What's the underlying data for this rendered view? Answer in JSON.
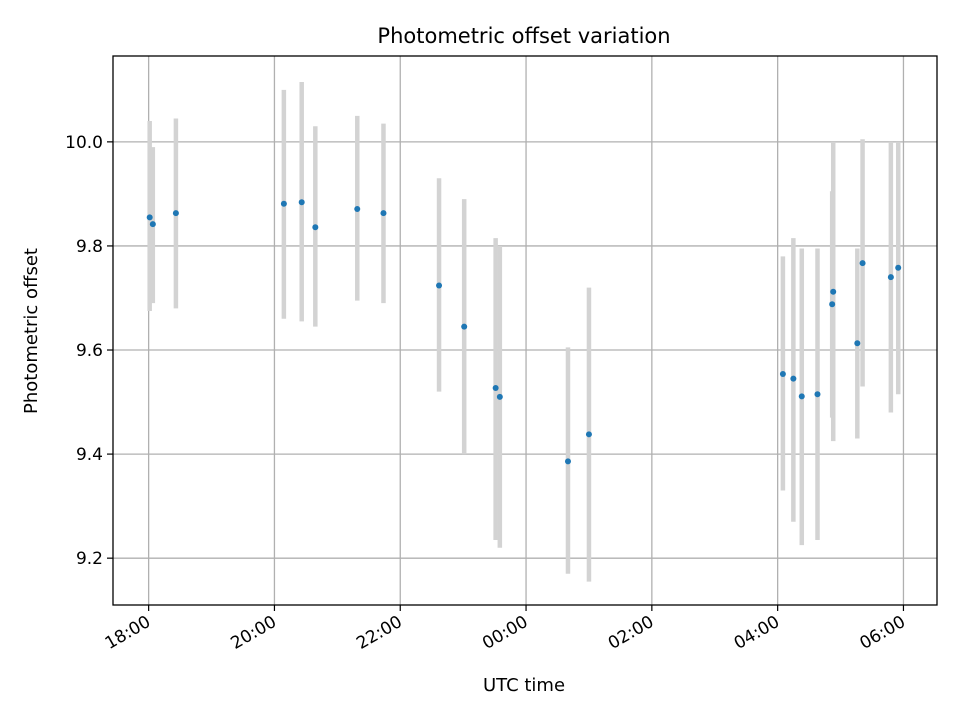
{
  "chart_data": {
    "type": "scatter",
    "title": "Photometric offset variation",
    "xlabel": "UTC time",
    "ylabel": "Photometric offset",
    "x_axis": {
      "kind": "time",
      "start": "2000-01-01T17:26",
      "end": "2000-01-02T06:32",
      "tick_times": [
        "2000-01-01T18:00",
        "2000-01-01T20:00",
        "2000-01-01T22:00",
        "2000-01-02T00:00",
        "2000-01-02T02:00",
        "2000-01-02T04:00",
        "2000-01-02T06:00"
      ],
      "tick_labels": [
        "18:00",
        "20:00",
        "22:00",
        "00:00",
        "02:00",
        "04:00",
        "06:00"
      ],
      "tick_label_rotation": "30deg"
    },
    "y_axis": {
      "min": 9.11,
      "max": 10.165,
      "ticks": [
        9.2,
        9.4,
        9.6,
        9.8,
        10.0
      ],
      "tick_labels": [
        "9.2",
        "9.4",
        "9.6",
        "9.8",
        "10.0"
      ]
    },
    "grid": true,
    "point_color": "#1f77b4",
    "errorbar_color": "#d3d3d3",
    "points": [
      {
        "x": "2000-01-01T18:01",
        "y": 9.855,
        "ylow": 9.675,
        "yhigh": 10.04
      },
      {
        "x": "2000-01-01T18:04",
        "y": 9.842,
        "ylow": 9.69,
        "yhigh": 9.99
      },
      {
        "x": "2000-01-01T18:26",
        "y": 9.863,
        "ylow": 9.68,
        "yhigh": 10.045
      },
      {
        "x": "2000-01-01T20:09",
        "y": 9.881,
        "ylow": 9.66,
        "yhigh": 10.1
      },
      {
        "x": "2000-01-01T20:26",
        "y": 9.884,
        "ylow": 9.655,
        "yhigh": 10.115
      },
      {
        "x": "2000-01-01T20:39",
        "y": 9.836,
        "ylow": 9.645,
        "yhigh": 10.03
      },
      {
        "x": "2000-01-01T21:19",
        "y": 9.871,
        "ylow": 9.695,
        "yhigh": 10.05
      },
      {
        "x": "2000-01-01T21:44",
        "y": 9.863,
        "ylow": 9.69,
        "yhigh": 10.035
      },
      {
        "x": "2000-01-01T22:37",
        "y": 9.724,
        "ylow": 9.52,
        "yhigh": 9.93
      },
      {
        "x": "2000-01-01T23:01",
        "y": 9.645,
        "ylow": 9.4,
        "yhigh": 9.89
      },
      {
        "x": "2000-01-01T23:31",
        "y": 9.527,
        "ylow": 9.235,
        "yhigh": 9.815
      },
      {
        "x": "2000-01-01T23:35",
        "y": 9.51,
        "ylow": 9.22,
        "yhigh": 9.8
      },
      {
        "x": "2000-01-02T00:40",
        "y": 9.386,
        "ylow": 9.17,
        "yhigh": 9.605
      },
      {
        "x": "2000-01-02T01:00",
        "y": 9.438,
        "ylow": 9.155,
        "yhigh": 9.72
      },
      {
        "x": "2000-01-02T04:05",
        "y": 9.554,
        "ylow": 9.33,
        "yhigh": 9.78
      },
      {
        "x": "2000-01-02T04:15",
        "y": 9.545,
        "ylow": 9.27,
        "yhigh": 9.815
      },
      {
        "x": "2000-01-02T04:23",
        "y": 9.511,
        "ylow": 9.225,
        "yhigh": 9.795
      },
      {
        "x": "2000-01-02T04:38",
        "y": 9.515,
        "ylow": 9.235,
        "yhigh": 9.795
      },
      {
        "x": "2000-01-02T04:52",
        "y": 9.688,
        "ylow": 9.47,
        "yhigh": 9.905
      },
      {
        "x": "2000-01-02T04:53",
        "y": 9.712,
        "ylow": 9.425,
        "yhigh": 10.0
      },
      {
        "x": "2000-01-02T05:16",
        "y": 9.613,
        "ylow": 9.43,
        "yhigh": 9.795
      },
      {
        "x": "2000-01-02T05:21",
        "y": 9.767,
        "ylow": 9.53,
        "yhigh": 10.005
      },
      {
        "x": "2000-01-02T05:48",
        "y": 9.74,
        "ylow": 9.48,
        "yhigh": 10.0
      },
      {
        "x": "2000-01-02T05:55",
        "y": 9.758,
        "ylow": 9.515,
        "yhigh": 10.0
      }
    ]
  }
}
